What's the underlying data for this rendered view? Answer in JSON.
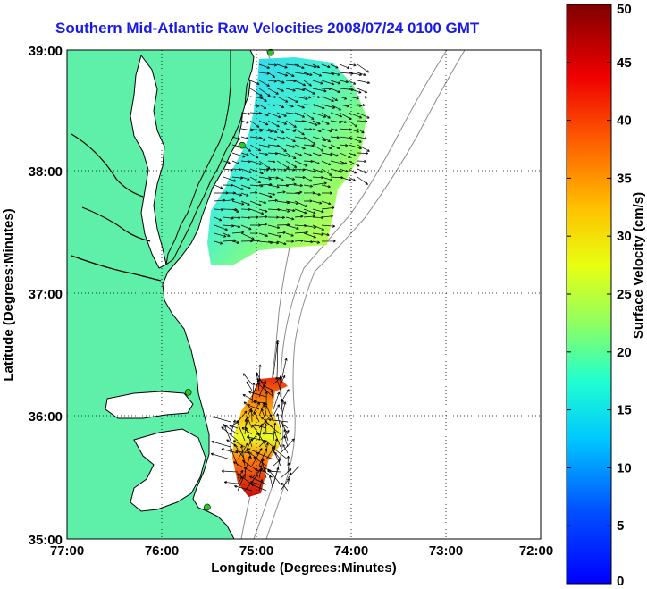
{
  "title": "Southern Mid-Atlantic Raw Velocities 2008/07/24 0100 GMT",
  "x_axis": {
    "label": "Longitude (Degrees:Minutes)",
    "ticks": [
      "77:00",
      "76:00",
      "75:00",
      "74:00",
      "73:00",
      "72:00"
    ]
  },
  "y_axis": {
    "label": "Latitude (Degrees:Minutes)",
    "ticks": [
      "39:00",
      "38:00",
      "37:00",
      "36:00",
      "35:00"
    ]
  },
  "colorbar": {
    "label": "Surface Velocity (cm/s)",
    "ticks": [
      "50",
      "45",
      "40",
      "35",
      "30",
      "25",
      "20",
      "15",
      "10",
      "5",
      "0"
    ],
    "range": [
      0,
      50
    ],
    "colormap": "jet"
  },
  "colors": {
    "title": "#1a1ae6",
    "land": "#5ef0a8",
    "coastline": "#000000",
    "bathymetry": "#8c8c8c",
    "station": "#22cc22"
  },
  "chart_data": {
    "type": "map",
    "x_range": [
      -77,
      -72
    ],
    "y_range": [
      35,
      39
    ],
    "grid": true,
    "stations": [
      {
        "lon": -74.85,
        "lat": 38.98
      },
      {
        "lon": -75.15,
        "lat": 38.22
      },
      {
        "lon": -75.72,
        "lat": 36.2
      },
      {
        "lon": -75.52,
        "lat": 35.26
      }
    ]
  }
}
